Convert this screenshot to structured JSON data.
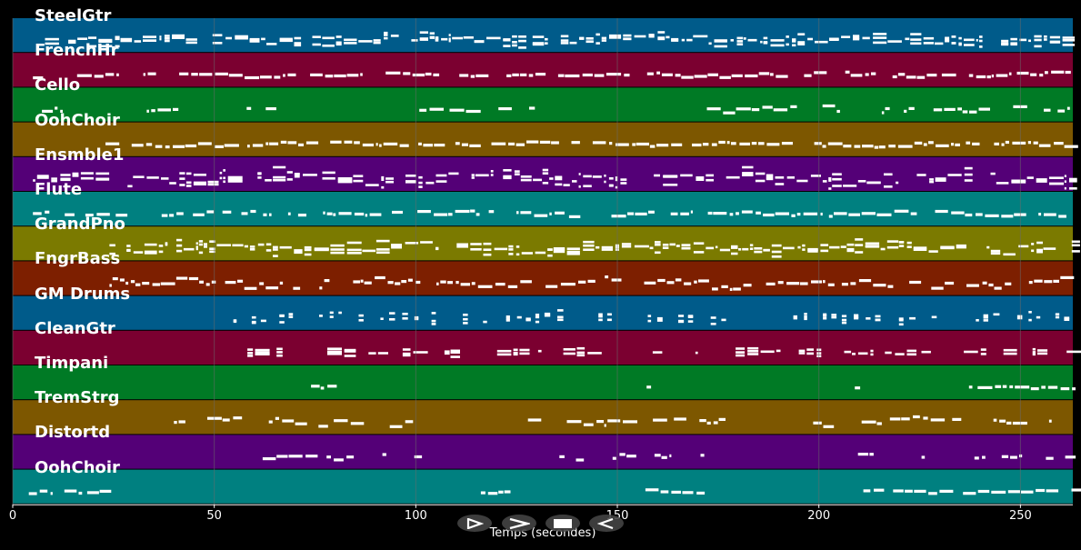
{
  "colors": {
    "background": "#000000",
    "note": "#ffffff",
    "grid": "#6a6a6a",
    "button_bg": "#464646"
  },
  "tracks": [
    {
      "name": "SteelGtr",
      "color": "#005b8a",
      "density": 0.92,
      "start": 8,
      "end": 263,
      "span": 0.45,
      "chordy": true
    },
    {
      "name": "FrenchHr",
      "color": "#7b0030",
      "density": 0.82,
      "start": 5,
      "end": 263,
      "span": 0.25,
      "chordy": false
    },
    {
      "name": "Cello",
      "color": "#007a25",
      "density": 0.55,
      "start": 5,
      "end": 263,
      "span": 0.35,
      "chordy": false,
      "gaps": [
        [
          65,
          95
        ],
        [
          132,
          150
        ],
        [
          155,
          167
        ]
      ]
    },
    {
      "name": "OohChoir",
      "color": "#7d5700",
      "density": 0.88,
      "start": 23,
      "end": 263,
      "span": 0.25,
      "chordy": false
    },
    {
      "name": "Ensmble1",
      "color": "#540077",
      "density": 0.85,
      "start": 5,
      "end": 263,
      "span": 0.75,
      "chordy": true
    },
    {
      "name": "Flute",
      "color": "#008080",
      "density": 0.72,
      "start": 5,
      "end": 263,
      "span": 0.25,
      "chordy": false
    },
    {
      "name": "GrandPno",
      "color": "#7b7a00",
      "density": 0.95,
      "start": 24,
      "end": 263,
      "span": 0.55,
      "chordy": true
    },
    {
      "name": "FngrBass",
      "color": "#7d1f00",
      "density": 0.78,
      "start": 24,
      "end": 263,
      "span": 0.55,
      "chordy": false
    },
    {
      "name": "GM Drums",
      "color": "#005b8a",
      "density": 0.6,
      "start": 53,
      "end": 263,
      "span": 0.45,
      "chordy": true,
      "dotted": true,
      "gaps": [
        [
          178,
          193
        ]
      ]
    },
    {
      "name": "CleanGtr",
      "color": "#7b0030",
      "density": 0.65,
      "start": 55,
      "end": 263,
      "span": 0.15,
      "chordy": true,
      "gaps": [
        [
          71,
          78
        ],
        [
          148,
          157
        ],
        [
          226,
          234
        ]
      ]
    },
    {
      "name": "Timpani",
      "color": "#007a25",
      "density": 0.1,
      "start": 74,
      "end": 263,
      "span": 0.15,
      "chordy": false,
      "sparse": [
        [
          74,
          79
        ],
        [
          153,
          158
        ],
        [
          208,
          211
        ],
        [
          236,
          263
        ]
      ]
    },
    {
      "name": "TremStrg",
      "color": "#7d5700",
      "density": 0.5,
      "start": 40,
      "end": 263,
      "span": 0.45,
      "chordy": false,
      "gaps": [
        [
          101,
          120
        ],
        [
          176,
          193
        ]
      ]
    },
    {
      "name": "Distortd",
      "color": "#540077",
      "density": 0.45,
      "start": 62,
      "end": 263,
      "span": 0.3,
      "chordy": false,
      "gaps": [
        [
          100,
          131
        ],
        [
          177,
          208
        ]
      ]
    },
    {
      "name": "OohChoir",
      "color": "#008080",
      "density": 0.35,
      "start": 4,
      "end": 263,
      "span": 0.2,
      "chordy": false,
      "sparse": [
        [
          4,
          22
        ],
        [
          115,
          122
        ],
        [
          155,
          170
        ],
        [
          210,
          263
        ]
      ]
    }
  ],
  "time_axis": {
    "title": "Temps (secondes)",
    "min": 0,
    "max": 263,
    "ticks": [
      "0",
      "50",
      "100",
      "150",
      "200",
      "250"
    ],
    "tick_values": [
      0,
      50,
      100,
      150,
      200,
      250
    ]
  },
  "controls": [
    {
      "name": "rewind-button",
      "icon": "rewind-icon"
    },
    {
      "name": "play-button",
      "icon": "play-icon"
    },
    {
      "name": "stop-button",
      "icon": "stop-icon"
    },
    {
      "name": "back-button",
      "icon": "back-icon"
    }
  ]
}
